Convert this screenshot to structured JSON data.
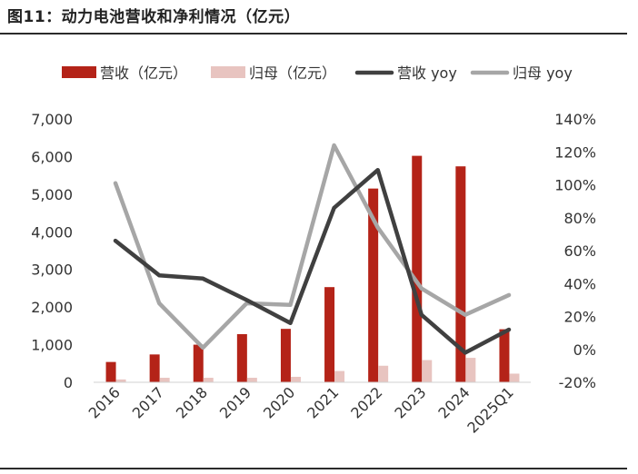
{
  "figure_title": "图11：动力电池营收和净利情况（亿元）",
  "colors": {
    "revenue_bar": "#B42318",
    "net_profit_bar": "#E8C4C0",
    "revenue_yoy_line": "#404040",
    "net_profit_yoy_line": "#A6A6A6"
  },
  "chart_data": {
    "type": "bar",
    "title": "",
    "xlabel": "",
    "ylabel": "",
    "categories": [
      "2016",
      "2017",
      "2018",
      "2019",
      "2020",
      "2021",
      "2022",
      "2023",
      "2024",
      "2025Q1"
    ],
    "ylim": [
      0,
      7000
    ],
    "y2lim": [
      -0.2,
      1.4
    ],
    "y_ticks": [
      "0",
      "1,000",
      "2,000",
      "3,000",
      "4,000",
      "5,000",
      "6,000",
      "7,000"
    ],
    "y2_ticks": [
      "-20%",
      "0%",
      "20%",
      "40%",
      "60%",
      "80%",
      "100%",
      "120%",
      "140%"
    ],
    "legend_position": "top",
    "grid": false,
    "series": [
      {
        "name": "营收（亿元）",
        "type": "bar",
        "axis": "left",
        "values": [
          540,
          740,
          1000,
          1280,
          1420,
          2530,
          5150,
          6020,
          5740,
          1410
        ]
      },
      {
        "name": "归母（亿元）",
        "type": "bar",
        "axis": "left",
        "values": [
          75,
          120,
          120,
          120,
          145,
          300,
          440,
          590,
          650,
          230
        ]
      },
      {
        "name": "营收 yoy",
        "type": "line",
        "axis": "right",
        "values": [
          0.66,
          0.45,
          0.43,
          0.3,
          0.16,
          0.86,
          1.09,
          0.21,
          -0.02,
          0.12
        ]
      },
      {
        "name": "归母 yoy",
        "type": "line",
        "axis": "right",
        "values": [
          1.01,
          0.28,
          0.01,
          0.28,
          0.27,
          1.24,
          0.74,
          0.37,
          0.21,
          0.33
        ]
      }
    ]
  }
}
